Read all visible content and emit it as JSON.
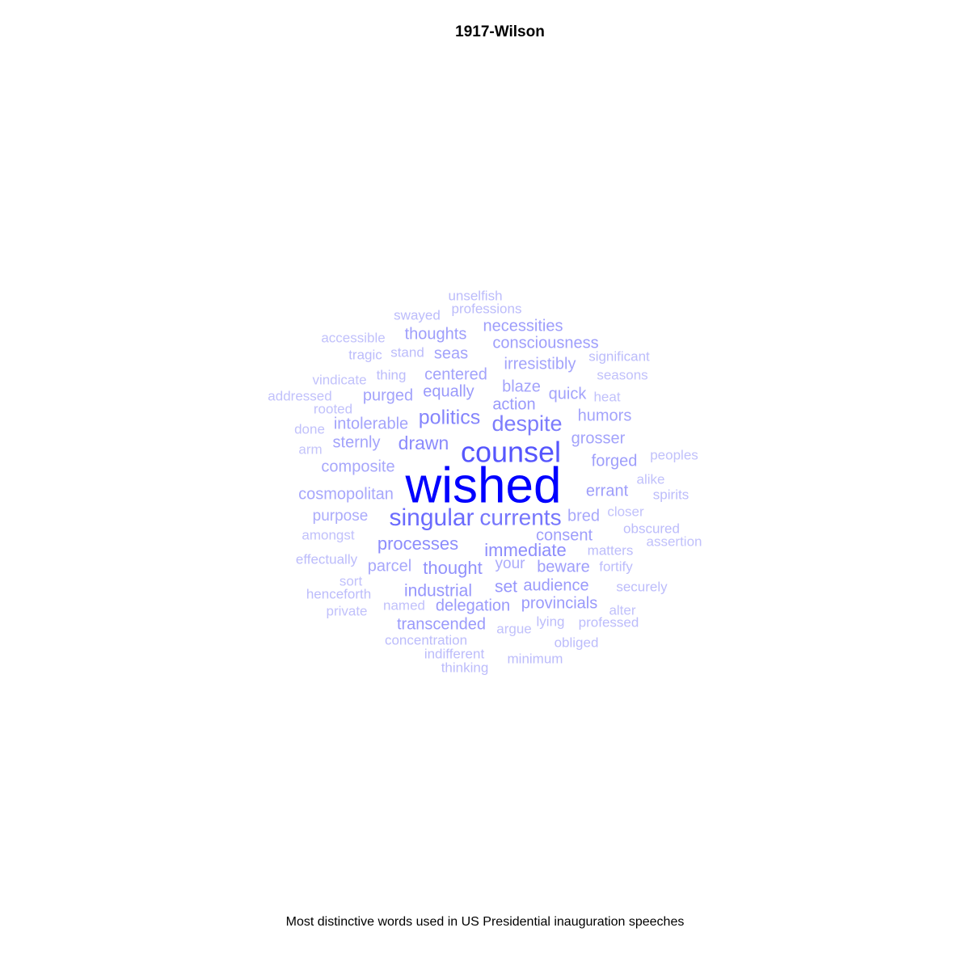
{
  "chart_data": {
    "type": "wordcloud",
    "title": "1917-Wilson",
    "caption": "Most distinctive words used in US Presidential inauguration speeches",
    "color_range": [
      "#d6d6fa",
      "#0000ff"
    ],
    "words": [
      {
        "text": "wished",
        "weight": 1.0
      },
      {
        "text": "counsel",
        "weight": 0.6
      },
      {
        "text": "singular",
        "weight": 0.5
      },
      {
        "text": "currents",
        "weight": 0.45
      },
      {
        "text": "despite",
        "weight": 0.42
      },
      {
        "text": "politics",
        "weight": 0.38
      },
      {
        "text": "drawn",
        "weight": 0.35
      },
      {
        "text": "immediate",
        "weight": 0.34
      },
      {
        "text": "processes",
        "weight": 0.34
      },
      {
        "text": "thought",
        "weight": 0.32
      },
      {
        "text": "industrial",
        "weight": 0.3
      },
      {
        "text": "set",
        "weight": 0.3
      },
      {
        "text": "transcended",
        "weight": 0.28
      },
      {
        "text": "delegation",
        "weight": 0.28
      },
      {
        "text": "provincials",
        "weight": 0.28
      },
      {
        "text": "audience",
        "weight": 0.28
      },
      {
        "text": "equally",
        "weight": 0.28
      },
      {
        "text": "action",
        "weight": 0.28
      },
      {
        "text": "consent",
        "weight": 0.26
      },
      {
        "text": "beware",
        "weight": 0.26
      },
      {
        "text": "forged",
        "weight": 0.26
      },
      {
        "text": "errant",
        "weight": 0.26
      },
      {
        "text": "thoughts",
        "weight": 0.26
      },
      {
        "text": "necessities",
        "weight": 0.26
      },
      {
        "text": "consciousness",
        "weight": 0.26
      },
      {
        "text": "irresistibly",
        "weight": 0.24
      },
      {
        "text": "centered",
        "weight": 0.24
      },
      {
        "text": "purged",
        "weight": 0.24
      },
      {
        "text": "seas",
        "weight": 0.24
      },
      {
        "text": "blaze",
        "weight": 0.24
      },
      {
        "text": "quick",
        "weight": 0.24
      },
      {
        "text": "humors",
        "weight": 0.24
      },
      {
        "text": "grosser",
        "weight": 0.24
      },
      {
        "text": "intolerable",
        "weight": 0.24
      },
      {
        "text": "sternly",
        "weight": 0.24
      },
      {
        "text": "composite",
        "weight": 0.22
      },
      {
        "text": "cosmopolitan",
        "weight": 0.22
      },
      {
        "text": "bred",
        "weight": 0.22
      },
      {
        "text": "parcel",
        "weight": 0.22
      },
      {
        "text": "your",
        "weight": 0.2
      },
      {
        "text": "purpose",
        "weight": 0.2
      },
      {
        "text": "unselfish",
        "weight": 0.12
      },
      {
        "text": "professions",
        "weight": 0.12
      },
      {
        "text": "swayed",
        "weight": 0.12
      },
      {
        "text": "accessible",
        "weight": 0.1
      },
      {
        "text": "tragic",
        "weight": 0.12
      },
      {
        "text": "stand",
        "weight": 0.12
      },
      {
        "text": "significant",
        "weight": 0.12
      },
      {
        "text": "seasons",
        "weight": 0.1
      },
      {
        "text": "vindicate",
        "weight": 0.1
      },
      {
        "text": "thing",
        "weight": 0.12
      },
      {
        "text": "addressed",
        "weight": 0.1
      },
      {
        "text": "heat",
        "weight": 0.1
      },
      {
        "text": "rooted",
        "weight": 0.1
      },
      {
        "text": "done",
        "weight": 0.1
      },
      {
        "text": "arm",
        "weight": 0.08
      },
      {
        "text": "peoples",
        "weight": 0.1
      },
      {
        "text": "alike",
        "weight": 0.1
      },
      {
        "text": "spirits",
        "weight": 0.12
      },
      {
        "text": "closer",
        "weight": 0.1
      },
      {
        "text": "amongst",
        "weight": 0.1
      },
      {
        "text": "obscured",
        "weight": 0.12
      },
      {
        "text": "assertion",
        "weight": 0.1
      },
      {
        "text": "effectually",
        "weight": 0.12
      },
      {
        "text": "matters",
        "weight": 0.12
      },
      {
        "text": "fortify",
        "weight": 0.12
      },
      {
        "text": "sort",
        "weight": 0.1
      },
      {
        "text": "henceforth",
        "weight": 0.12
      },
      {
        "text": "securely",
        "weight": 0.12
      },
      {
        "text": "private",
        "weight": 0.1
      },
      {
        "text": "named",
        "weight": 0.1
      },
      {
        "text": "alter",
        "weight": 0.1
      },
      {
        "text": "argue",
        "weight": 0.1
      },
      {
        "text": "lying",
        "weight": 0.12
      },
      {
        "text": "professed",
        "weight": 0.12
      },
      {
        "text": "concentration",
        "weight": 0.12
      },
      {
        "text": "obliged",
        "weight": 0.12
      },
      {
        "text": "indifferent",
        "weight": 0.12
      },
      {
        "text": "minimum",
        "weight": 0.12
      },
      {
        "text": "thinking",
        "weight": 0.12
      }
    ]
  }
}
